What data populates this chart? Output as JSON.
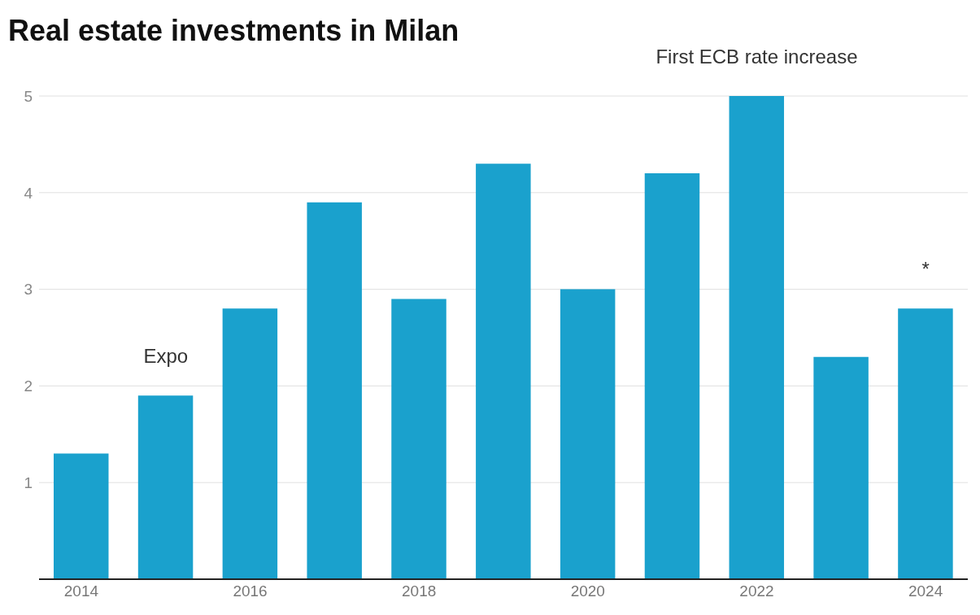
{
  "chart_data": {
    "type": "bar",
    "title": "Real estate investments in Milan",
    "x": [
      2014,
      2015,
      2016,
      2017,
      2018,
      2019,
      2020,
      2021,
      2022,
      2023,
      2024
    ],
    "values": [
      1.3,
      1.9,
      2.8,
      3.9,
      2.9,
      4.3,
      3.0,
      4.2,
      5.0,
      2.3,
      2.8
    ],
    "color": "#1aa1cd",
    "xlim": [
      2013.5,
      2024.5
    ],
    "xticks": [
      2014,
      2016,
      2018,
      2020,
      2022,
      2024
    ],
    "ylim": [
      0,
      5
    ],
    "yticks": [
      {
        "value": 0,
        "label": null
      },
      1,
      2,
      3,
      4,
      5
    ],
    "grid": "y",
    "annotations": [
      {
        "text": "Expo",
        "x": 2015,
        "y": 1.9
      },
      {
        "text": "First ECB rate increase",
        "x": 2022,
        "y": 5.0
      },
      {
        "text": "*",
        "x": 2024,
        "y": 2.8
      }
    ]
  }
}
